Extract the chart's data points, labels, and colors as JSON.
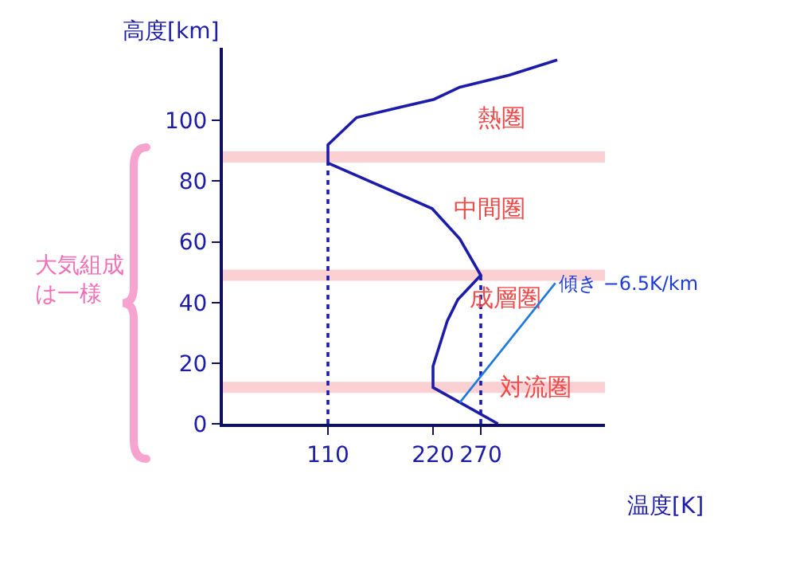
{
  "chart_data": {
    "type": "line",
    "xlabel": "温度[K]",
    "ylabel": "高度[km]",
    "xlim": [
      0,
      400
    ],
    "xticks": [
      110,
      220,
      270
    ],
    "ylim": [
      0,
      124
    ],
    "yticks": [
      0,
      20,
      40,
      60,
      80,
      100
    ],
    "grid": false,
    "marker": "none",
    "series": [
      {
        "color": "#1c1ca8",
        "line_style": "solid",
        "x": [
          288,
          220,
          220,
          235,
          246,
          270,
          248,
          219,
          110,
          110,
          140,
          221,
          248,
          300,
          350
        ],
        "values": [
          0,
          12,
          19,
          34,
          41,
          49,
          61,
          71,
          86,
          92,
          101,
          107,
          111,
          115,
          120
        ]
      },
      {
        "color": "#1c1ca8",
        "line_style": "dotted",
        "x": [
          110,
          110
        ],
        "values": [
          0,
          86
        ]
      },
      {
        "color": "#1c1ca8",
        "line_style": "dotted",
        "x": [
          270,
          270
        ],
        "values": [
          0,
          49
        ]
      }
    ],
    "ref_lines": [
      {
        "axis": "y",
        "value": 12,
        "color": "#fbd0d2"
      },
      {
        "axis": "y",
        "value": 49,
        "color": "#fbd0d2"
      },
      {
        "axis": "y",
        "value": 88,
        "color": "#fbd0d2"
      }
    ],
    "annotations": [
      "熱圏",
      "中間圏",
      "成層圏",
      "対流圏",
      {
        "text": "傾き −6.5K/km",
        "x": 248,
        "y": 7
      },
      "大気組成は一様"
    ]
  }
}
